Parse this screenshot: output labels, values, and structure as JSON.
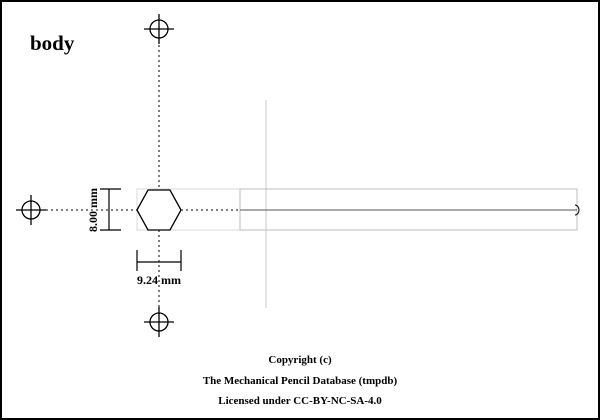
{
  "drawing": {
    "title": "body",
    "dimensions": {
      "height_label": "8.00 mm",
      "width_label": "9.24 mm",
      "height_mm": 8.0,
      "width_mm": 9.24
    },
    "footer": {
      "line1": "Copyright (c)",
      "line2": "The Mechanical Pencil Database (tmpdb)",
      "line3": "Licensed under CC-BY-NC-SA-4.0"
    }
  }
}
